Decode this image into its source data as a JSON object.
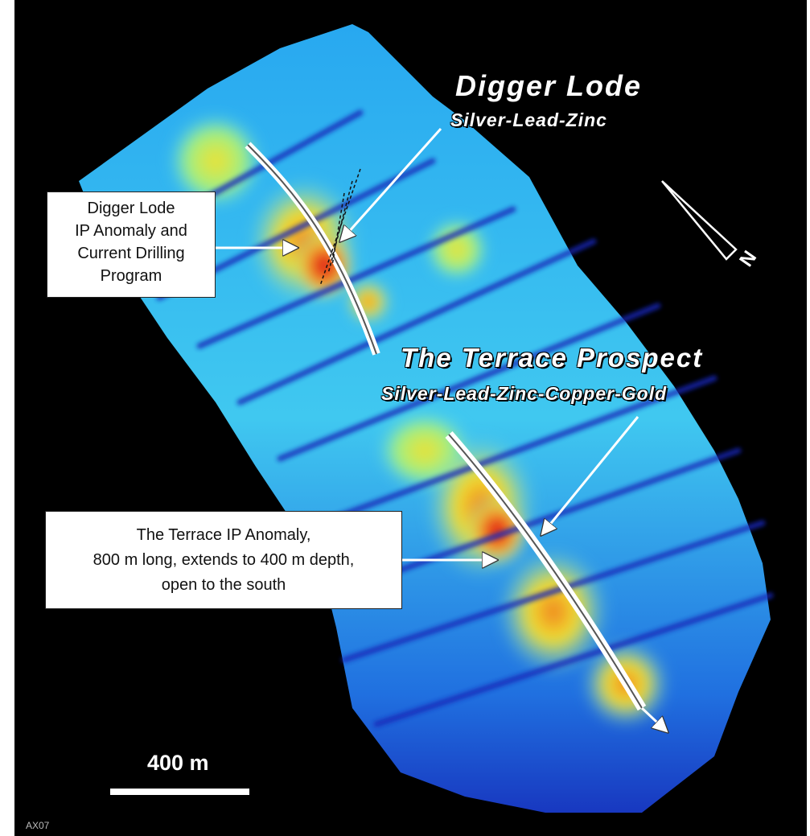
{
  "titles": {
    "digger_lode": "Digger Lode",
    "digger_lode_sub": "Silver-Lead-Zinc",
    "terrace_prospect": "The Terrace Prospect",
    "terrace_prospect_sub": "Silver-Lead-Zinc-Copper-Gold"
  },
  "callouts": {
    "digger_anomaly": [
      "Digger Lode",
      "IP Anomaly and",
      "Current Drilling",
      "Program"
    ],
    "terrace_anomaly": [
      "The Terrace IP Anomaly,",
      "800 m long, extends to 400 m depth,",
      "open to the south"
    ]
  },
  "scale_bar": {
    "label": "400 m"
  },
  "north_arrow": {
    "letter": "N"
  },
  "figure_code": "AX07",
  "colors": {
    "background": "#000000",
    "low": "#1530c8",
    "mid_low": "#1ea8f0",
    "mid": "#60e0f0",
    "mid_high": "#f0e830",
    "high": "#f07020",
    "peak": "#d01010",
    "annotation": "#ffffff"
  }
}
